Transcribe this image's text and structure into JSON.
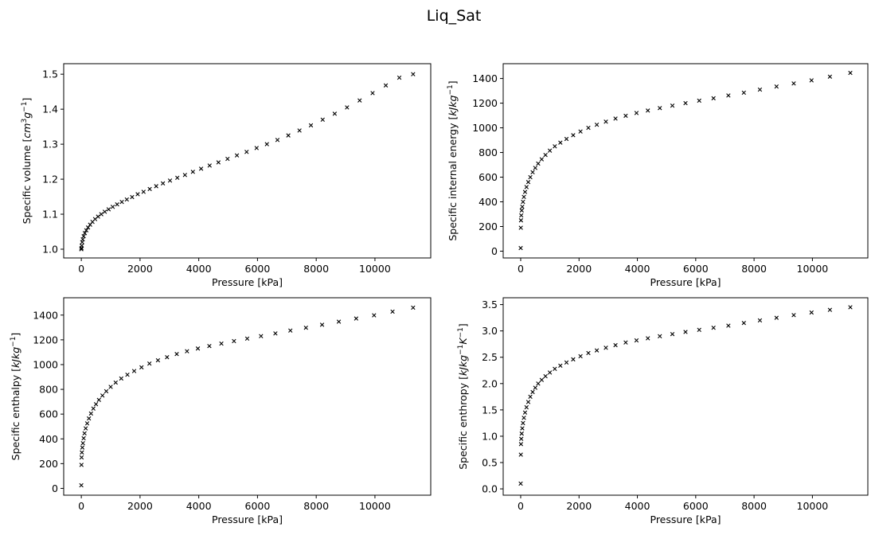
{
  "figure": {
    "title": "Liq_Sat"
  },
  "colors": {
    "marker": "#000000",
    "axes": "#000000",
    "background": "#ffffff"
  },
  "chart_data": [
    {
      "type": "scatter",
      "title": "",
      "xlabel": "Pressure [kPa]",
      "ylabel": "Specific volume [cm³g⁻¹]",
      "ylabel_parts": [
        {
          "t": "Specific volume [",
          "s": "n"
        },
        {
          "t": "cm",
          "s": "i"
        },
        {
          "t": "3",
          "s": "sup"
        },
        {
          "t": "g",
          "s": "i"
        },
        {
          "t": "−1",
          "s": "sup"
        },
        {
          "t": "]",
          "s": "n"
        }
      ],
      "xlim": [
        -600,
        11900
      ],
      "ylim": [
        0.975,
        1.53
      ],
      "xticks": [
        0,
        2000,
        4000,
        6000,
        8000,
        10000
      ],
      "xtick_labels": [
        "0",
        "2000",
        "4000",
        "6000",
        "8000",
        "10000"
      ],
      "yticks": [
        1.0,
        1.1,
        1.2,
        1.3,
        1.4,
        1.5
      ],
      "ytick_labels": [
        "1.0",
        "1.1",
        "1.2",
        "1.3",
        "1.4",
        "1.5"
      ],
      "marker": "x",
      "grid": false,
      "legend": "none",
      "points": [
        [
          0,
          1.0
        ],
        [
          5,
          1.003
        ],
        [
          15,
          1.01
        ],
        [
          30,
          1.02
        ],
        [
          50,
          1.028
        ],
        [
          80,
          1.037
        ],
        [
          120,
          1.046
        ],
        [
          170,
          1.054
        ],
        [
          230,
          1.062
        ],
        [
          300,
          1.07
        ],
        [
          380,
          1.078
        ],
        [
          470,
          1.086
        ],
        [
          570,
          1.093
        ],
        [
          680,
          1.1
        ],
        [
          800,
          1.107
        ],
        [
          930,
          1.114
        ],
        [
          1070,
          1.121
        ],
        [
          1220,
          1.128
        ],
        [
          1380,
          1.135
        ],
        [
          1550,
          1.142
        ],
        [
          1730,
          1.149
        ],
        [
          1920,
          1.157
        ],
        [
          2120,
          1.164
        ],
        [
          2330,
          1.172
        ],
        [
          2550,
          1.18
        ],
        [
          2780,
          1.188
        ],
        [
          3020,
          1.196
        ],
        [
          3270,
          1.204
        ],
        [
          3530,
          1.212
        ],
        [
          3800,
          1.221
        ],
        [
          4080,
          1.23
        ],
        [
          4370,
          1.239
        ],
        [
          4670,
          1.248
        ],
        [
          4980,
          1.258
        ],
        [
          5300,
          1.268
        ],
        [
          5630,
          1.278
        ],
        [
          5970,
          1.289
        ],
        [
          6320,
          1.3
        ],
        [
          6680,
          1.312
        ],
        [
          7050,
          1.325
        ],
        [
          7430,
          1.339
        ],
        [
          7820,
          1.354
        ],
        [
          8220,
          1.37
        ],
        [
          8630,
          1.387
        ],
        [
          9050,
          1.405
        ],
        [
          9480,
          1.425
        ],
        [
          9920,
          1.446
        ],
        [
          10370,
          1.468
        ],
        [
          10830,
          1.49
        ],
        [
          11300,
          1.5
        ]
      ]
    },
    {
      "type": "scatter",
      "title": "",
      "xlabel": "Pressure [kPa]",
      "ylabel": "Specific internal energy [kJkg⁻¹]",
      "ylabel_parts": [
        {
          "t": "Specific internal energy [",
          "s": "n"
        },
        {
          "t": "kJkg",
          "s": "i"
        },
        {
          "t": "−1",
          "s": "sup"
        },
        {
          "t": "]",
          "s": "n"
        }
      ],
      "xlim": [
        -600,
        11900
      ],
      "ylim": [
        -55,
        1520
      ],
      "xticks": [
        0,
        2000,
        4000,
        6000,
        8000,
        10000
      ],
      "xtick_labels": [
        "0",
        "2000",
        "4000",
        "6000",
        "8000",
        "10000"
      ],
      "yticks": [
        0,
        200,
        400,
        600,
        800,
        1000,
        1200,
        1400
      ],
      "ytick_labels": [
        "0",
        "200",
        "400",
        "600",
        "800",
        "1000",
        "1200",
        "1400"
      ],
      "marker": "x",
      "grid": false,
      "legend": "none",
      "points": [
        [
          0,
          25
        ],
        [
          5,
          190
        ],
        [
          10,
          250
        ],
        [
          20,
          290
        ],
        [
          35,
          330
        ],
        [
          55,
          360
        ],
        [
          80,
          400
        ],
        [
          110,
          440
        ],
        [
          150,
          480
        ],
        [
          200,
          520
        ],
        [
          260,
          560
        ],
        [
          330,
          600
        ],
        [
          410,
          640
        ],
        [
          500,
          675
        ],
        [
          600,
          710
        ],
        [
          720,
          745
        ],
        [
          850,
          780
        ],
        [
          1000,
          815
        ],
        [
          1170,
          850
        ],
        [
          1360,
          880
        ],
        [
          1570,
          910
        ],
        [
          1800,
          940
        ],
        [
          2050,
          970
        ],
        [
          2320,
          1000
        ],
        [
          2610,
          1025
        ],
        [
          2920,
          1050
        ],
        [
          3250,
          1075
        ],
        [
          3600,
          1098
        ],
        [
          3970,
          1120
        ],
        [
          4360,
          1140
        ],
        [
          4770,
          1160
        ],
        [
          5200,
          1180
        ],
        [
          5650,
          1200
        ],
        [
          6120,
          1220
        ],
        [
          6610,
          1240
        ],
        [
          7120,
          1262
        ],
        [
          7650,
          1285
        ],
        [
          8200,
          1310
        ],
        [
          8770,
          1335
        ],
        [
          9360,
          1360
        ],
        [
          9970,
          1385
        ],
        [
          10600,
          1415
        ],
        [
          11300,
          1445
        ]
      ]
    },
    {
      "type": "scatter",
      "title": "",
      "xlabel": "Pressure [kPa]",
      "ylabel": "Specific enthalpy [kJkg⁻¹]",
      "ylabel_parts": [
        {
          "t": "Specific enthalpy [",
          "s": "n"
        },
        {
          "t": "kJkg",
          "s": "i"
        },
        {
          "t": "−1",
          "s": "sup"
        },
        {
          "t": "]",
          "s": "n"
        }
      ],
      "xlim": [
        -600,
        11900
      ],
      "ylim": [
        -55,
        1540
      ],
      "xticks": [
        0,
        2000,
        4000,
        6000,
        8000,
        10000
      ],
      "xtick_labels": [
        "0",
        "2000",
        "4000",
        "6000",
        "8000",
        "10000"
      ],
      "yticks": [
        0,
        200,
        400,
        600,
        800,
        1000,
        1200,
        1400
      ],
      "ytick_labels": [
        "0",
        "200",
        "400",
        "600",
        "800",
        "1000",
        "1200",
        "1400"
      ],
      "marker": "x",
      "grid": false,
      "legend": "none",
      "points": [
        [
          0,
          25
        ],
        [
          5,
          190
        ],
        [
          10,
          250
        ],
        [
          20,
          290
        ],
        [
          35,
          330
        ],
        [
          55,
          365
        ],
        [
          80,
          405
        ],
        [
          110,
          445
        ],
        [
          150,
          485
        ],
        [
          200,
          525
        ],
        [
          260,
          565
        ],
        [
          330,
          605
        ],
        [
          410,
          645
        ],
        [
          500,
          680
        ],
        [
          600,
          715
        ],
        [
          720,
          750
        ],
        [
          850,
          785
        ],
        [
          1000,
          820
        ],
        [
          1170,
          855
        ],
        [
          1360,
          888
        ],
        [
          1570,
          918
        ],
        [
          1800,
          948
        ],
        [
          2050,
          978
        ],
        [
          2320,
          1008
        ],
        [
          2610,
          1035
        ],
        [
          2920,
          1060
        ],
        [
          3250,
          1085
        ],
        [
          3600,
          1108
        ],
        [
          3970,
          1130
        ],
        [
          4360,
          1150
        ],
        [
          4770,
          1170
        ],
        [
          5200,
          1190
        ],
        [
          5650,
          1210
        ],
        [
          6120,
          1230
        ],
        [
          6610,
          1252
        ],
        [
          7120,
          1275
        ],
        [
          7650,
          1298
        ],
        [
          8200,
          1322
        ],
        [
          8770,
          1347
        ],
        [
          9360,
          1372
        ],
        [
          9970,
          1398
        ],
        [
          10600,
          1428
        ],
        [
          11300,
          1460
        ]
      ]
    },
    {
      "type": "scatter",
      "title": "",
      "xlabel": "Pressure [kPa]",
      "ylabel": "Specific enthropy [kJkg⁻¹K⁻¹]",
      "ylabel_parts": [
        {
          "t": "Specific enthropy [",
          "s": "n"
        },
        {
          "t": "kJkg",
          "s": "i"
        },
        {
          "t": "−1",
          "s": "sup"
        },
        {
          "t": "K",
          "s": "i"
        },
        {
          "t": "−1",
          "s": "sup"
        },
        {
          "t": "]",
          "s": "n"
        }
      ],
      "xlim": [
        -600,
        11900
      ],
      "ylim": [
        -0.12,
        3.63
      ],
      "xticks": [
        0,
        2000,
        4000,
        6000,
        8000,
        10000
      ],
      "xtick_labels": [
        "0",
        "2000",
        "4000",
        "6000",
        "8000",
        "10000"
      ],
      "yticks": [
        0.0,
        0.5,
        1.0,
        1.5,
        2.0,
        2.5,
        3.0,
        3.5
      ],
      "ytick_labels": [
        "0.0",
        "0.5",
        "1.0",
        "1.5",
        "2.0",
        "2.5",
        "3.0",
        "3.5"
      ],
      "marker": "x",
      "grid": false,
      "legend": "none",
      "points": [
        [
          0,
          0.1
        ],
        [
          5,
          0.65
        ],
        [
          10,
          0.85
        ],
        [
          20,
          0.95
        ],
        [
          35,
          1.05
        ],
        [
          55,
          1.15
        ],
        [
          80,
          1.25
        ],
        [
          110,
          1.35
        ],
        [
          150,
          1.45
        ],
        [
          200,
          1.55
        ],
        [
          260,
          1.65
        ],
        [
          330,
          1.75
        ],
        [
          410,
          1.84
        ],
        [
          500,
          1.92
        ],
        [
          600,
          2.0
        ],
        [
          720,
          2.07
        ],
        [
          850,
          2.14
        ],
        [
          1000,
          2.21
        ],
        [
          1170,
          2.28
        ],
        [
          1360,
          2.34
        ],
        [
          1570,
          2.4
        ],
        [
          1800,
          2.46
        ],
        [
          2050,
          2.52
        ],
        [
          2320,
          2.58
        ],
        [
          2610,
          2.63
        ],
        [
          2920,
          2.68
        ],
        [
          3250,
          2.73
        ],
        [
          3600,
          2.78
        ],
        [
          3970,
          2.82
        ],
        [
          4360,
          2.86
        ],
        [
          4770,
          2.9
        ],
        [
          5200,
          2.94
        ],
        [
          5650,
          2.98
        ],
        [
          6120,
          3.02
        ],
        [
          6610,
          3.06
        ],
        [
          7120,
          3.1
        ],
        [
          7650,
          3.15
        ],
        [
          8200,
          3.2
        ],
        [
          8770,
          3.25
        ],
        [
          9360,
          3.3
        ],
        [
          9970,
          3.35
        ],
        [
          10600,
          3.4
        ],
        [
          11300,
          3.45
        ]
      ]
    }
  ]
}
